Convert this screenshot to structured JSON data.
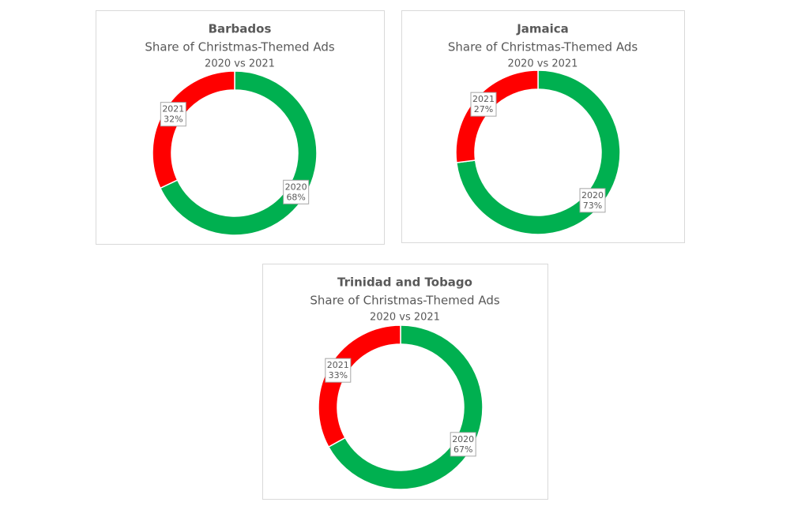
{
  "chart_data": [
    {
      "type": "donut",
      "title": "Barbados",
      "subtitles": [
        "Share of Christmas-Themed Ads",
        "2020 vs 2021"
      ],
      "categories": [
        "2020",
        "2021"
      ],
      "values": [
        68,
        32
      ],
      "value_labels": [
        "68%",
        "32%"
      ],
      "colors": [
        "#00b050",
        "#ff0000"
      ]
    },
    {
      "type": "donut",
      "title": "Jamaica",
      "subtitles": [
        "Share of Christmas-Themed Ads",
        "2020 vs 2021"
      ],
      "categories": [
        "2020",
        "2021"
      ],
      "values": [
        73,
        27
      ],
      "value_labels": [
        "73%",
        "27%"
      ],
      "colors": [
        "#00b050",
        "#ff0000"
      ]
    },
    {
      "type": "donut",
      "title": "Trinidad and Tobago",
      "subtitles": [
        "Share of Christmas-Themed Ads",
        "2020 vs 2021"
      ],
      "categories": [
        "2020",
        "2021"
      ],
      "values": [
        67,
        33
      ],
      "value_labels": [
        "67%",
        "33%"
      ],
      "colors": [
        "#00b050",
        "#ff0000"
      ]
    }
  ]
}
